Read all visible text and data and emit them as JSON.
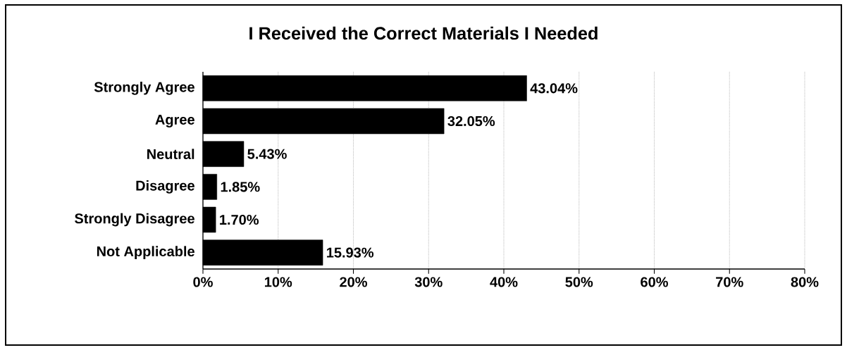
{
  "chart_data": {
    "type": "bar",
    "orientation": "horizontal",
    "title": "I Received the Correct Materials I Needed",
    "categories": [
      "Strongly Agree",
      "Agree",
      "Neutral",
      "Disagree",
      "Strongly Disagree",
      "Not Applicable"
    ],
    "values": [
      43.04,
      32.05,
      5.43,
      1.85,
      1.7,
      15.93
    ],
    "value_labels": [
      "43.04%",
      "32.05%",
      "5.43%",
      "1.85%",
      "1.70%",
      "15.93%"
    ],
    "color": "#000000",
    "xlim": [
      0,
      80
    ],
    "xticks": [
      {
        "value": 0,
        "label": "0%"
      },
      {
        "value": 10,
        "label": "10%"
      },
      {
        "value": 20,
        "label": "20%"
      },
      {
        "value": 30,
        "label": "30%"
      },
      {
        "value": 40,
        "label": "40%"
      },
      {
        "value": 50,
        "label": "50%"
      },
      {
        "value": 60,
        "label": "60%"
      },
      {
        "value": 70,
        "label": "70%"
      },
      {
        "value": 80,
        "label": "80%"
      }
    ],
    "grid": "x"
  }
}
